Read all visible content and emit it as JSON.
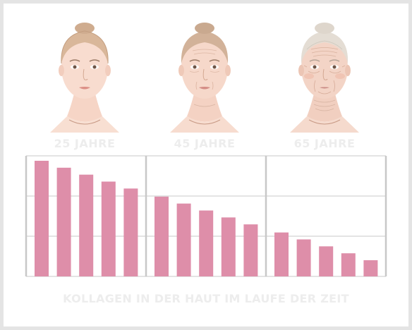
{
  "chart_data": {
    "type": "bar",
    "title": "KOLLAGEN IN DER HAUT IM LAUFE DER ZEIT",
    "groups": [
      "25 JAHRE",
      "45 JAHRE",
      "65 JAHRE"
    ],
    "values": [
      [
        100,
        94,
        88,
        82,
        76
      ],
      [
        69,
        63,
        57,
        51,
        45
      ],
      [
        38,
        32,
        26,
        20,
        14
      ]
    ],
    "ylim": [
      0,
      100
    ],
    "grid": true,
    "bar_color": "#de8ea9",
    "grid_color": "#c8c8c8"
  }
}
